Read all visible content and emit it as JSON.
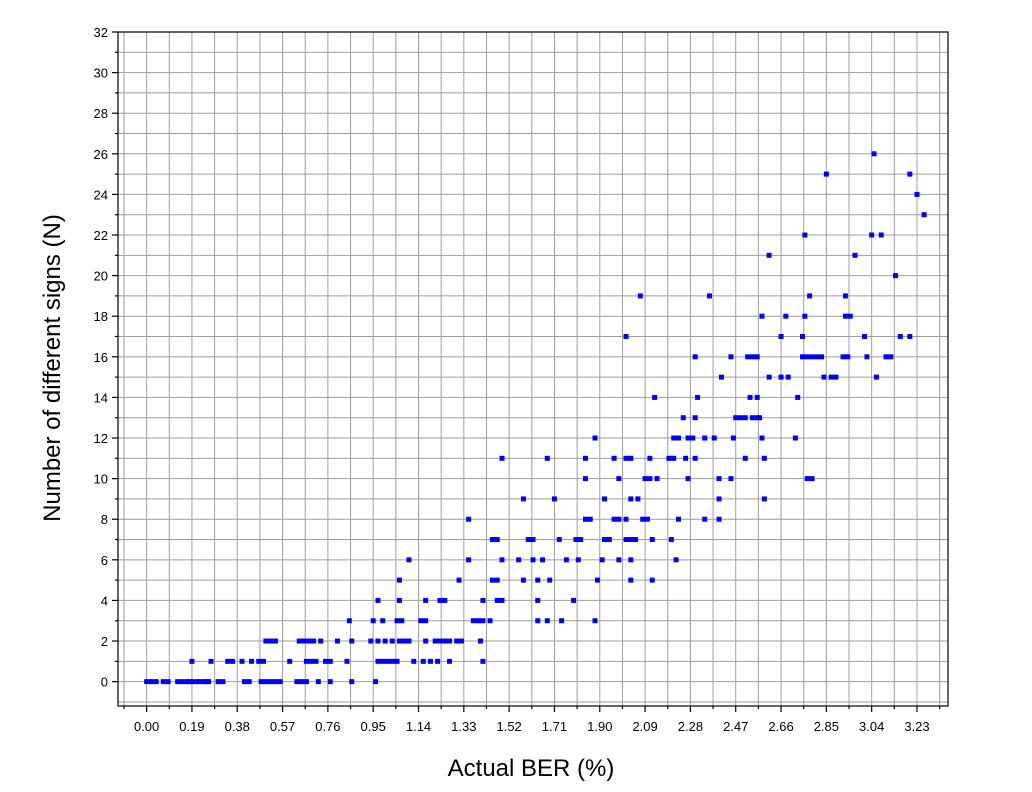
{
  "chart_data": {
    "type": "scatter",
    "title": "",
    "xlabel": "Actual BER (%)",
    "ylabel": "Number of different signs (N)",
    "xlim": [
      -0.12,
      3.36
    ],
    "ylim": [
      -1.2,
      32
    ],
    "x_ticks": [
      "0.00",
      "0.19",
      "0.38",
      "0.57",
      "0.76",
      "0.95",
      "1.14",
      "1.33",
      "1.52",
      "1.71",
      "1.90",
      "2.09",
      "2.28",
      "2.47",
      "2.66",
      "2.85",
      "3.04",
      "3.23"
    ],
    "y_ticks": [
      "0",
      "2",
      "4",
      "6",
      "8",
      "10",
      "12",
      "14",
      "16",
      "18",
      "20",
      "22",
      "24",
      "26",
      "28",
      "30",
      "32"
    ],
    "grid": true,
    "marker_color": "#0000ff",
    "points": [
      [
        0.0,
        0
      ],
      [
        0.02,
        0
      ],
      [
        0.04,
        0
      ],
      [
        0.07,
        0
      ],
      [
        0.09,
        0
      ],
      [
        0.13,
        0
      ],
      [
        0.15,
        0
      ],
      [
        0.17,
        0
      ],
      [
        0.18,
        0
      ],
      [
        0.19,
        0
      ],
      [
        0.21,
        0
      ],
      [
        0.22,
        0
      ],
      [
        0.24,
        0
      ],
      [
        0.25,
        0
      ],
      [
        0.26,
        0
      ],
      [
        0.3,
        0
      ],
      [
        0.32,
        0
      ],
      [
        0.41,
        0
      ],
      [
        0.43,
        0
      ],
      [
        0.48,
        0
      ],
      [
        0.5,
        0
      ],
      [
        0.52,
        0
      ],
      [
        0.54,
        0
      ],
      [
        0.56,
        0
      ],
      [
        0.63,
        0
      ],
      [
        0.65,
        0
      ],
      [
        0.67,
        0
      ],
      [
        0.72,
        0
      ],
      [
        0.77,
        0
      ],
      [
        0.86,
        0
      ],
      [
        0.96,
        0
      ],
      [
        0.19,
        1
      ],
      [
        0.27,
        1
      ],
      [
        0.34,
        1
      ],
      [
        0.36,
        1
      ],
      [
        0.4,
        1
      ],
      [
        0.44,
        1
      ],
      [
        0.47,
        1
      ],
      [
        0.49,
        1
      ],
      [
        0.6,
        1
      ],
      [
        0.67,
        1
      ],
      [
        0.69,
        1
      ],
      [
        0.71,
        1
      ],
      [
        0.75,
        1
      ],
      [
        0.77,
        1
      ],
      [
        0.84,
        1
      ],
      [
        0.97,
        1
      ],
      [
        0.99,
        1
      ],
      [
        1.01,
        1
      ],
      [
        1.03,
        1
      ],
      [
        1.05,
        1
      ],
      [
        1.12,
        1
      ],
      [
        1.16,
        1
      ],
      [
        1.19,
        1
      ],
      [
        1.22,
        1
      ],
      [
        1.27,
        1
      ],
      [
        1.41,
        1
      ],
      [
        0.5,
        2
      ],
      [
        0.52,
        2
      ],
      [
        0.54,
        2
      ],
      [
        0.64,
        2
      ],
      [
        0.66,
        2
      ],
      [
        0.68,
        2
      ],
      [
        0.7,
        2
      ],
      [
        0.73,
        2
      ],
      [
        0.8,
        2
      ],
      [
        0.86,
        2
      ],
      [
        0.94,
        2
      ],
      [
        0.97,
        2
      ],
      [
        1.0,
        2
      ],
      [
        1.03,
        2
      ],
      [
        1.06,
        2
      ],
      [
        1.08,
        2
      ],
      [
        1.1,
        2
      ],
      [
        1.17,
        2
      ],
      [
        1.21,
        2
      ],
      [
        1.23,
        2
      ],
      [
        1.25,
        2
      ],
      [
        1.27,
        2
      ],
      [
        1.3,
        2
      ],
      [
        1.32,
        2
      ],
      [
        1.4,
        2
      ],
      [
        0.85,
        3
      ],
      [
        0.95,
        3
      ],
      [
        0.99,
        3
      ],
      [
        1.05,
        3
      ],
      [
        1.07,
        3
      ],
      [
        1.15,
        3
      ],
      [
        1.17,
        3
      ],
      [
        1.37,
        3
      ],
      [
        1.39,
        3
      ],
      [
        1.41,
        3
      ],
      [
        1.44,
        3
      ],
      [
        1.64,
        3
      ],
      [
        1.68,
        3
      ],
      [
        1.74,
        3
      ],
      [
        1.88,
        3
      ],
      [
        0.97,
        4
      ],
      [
        1.06,
        4
      ],
      [
        1.17,
        4
      ],
      [
        1.23,
        4
      ],
      [
        1.25,
        4
      ],
      [
        1.41,
        4
      ],
      [
        1.47,
        4
      ],
      [
        1.49,
        4
      ],
      [
        1.64,
        4
      ],
      [
        1.79,
        4
      ],
      [
        1.06,
        5
      ],
      [
        1.31,
        5
      ],
      [
        1.45,
        5
      ],
      [
        1.47,
        5
      ],
      [
        1.58,
        5
      ],
      [
        1.64,
        5
      ],
      [
        1.69,
        5
      ],
      [
        1.89,
        5
      ],
      [
        2.03,
        5
      ],
      [
        2.12,
        5
      ],
      [
        1.1,
        6
      ],
      [
        1.35,
        6
      ],
      [
        1.49,
        6
      ],
      [
        1.56,
        6
      ],
      [
        1.62,
        6
      ],
      [
        1.66,
        6
      ],
      [
        1.76,
        6
      ],
      [
        1.81,
        6
      ],
      [
        1.91,
        6
      ],
      [
        1.98,
        6
      ],
      [
        2.03,
        6
      ],
      [
        2.22,
        6
      ],
      [
        1.45,
        7
      ],
      [
        1.47,
        7
      ],
      [
        1.6,
        7
      ],
      [
        1.62,
        7
      ],
      [
        1.73,
        7
      ],
      [
        1.8,
        7
      ],
      [
        1.82,
        7
      ],
      [
        1.92,
        7
      ],
      [
        1.94,
        7
      ],
      [
        2.01,
        7
      ],
      [
        2.03,
        7
      ],
      [
        2.05,
        7
      ],
      [
        2.12,
        7
      ],
      [
        2.2,
        7
      ],
      [
        1.35,
        8
      ],
      [
        1.84,
        8
      ],
      [
        1.86,
        8
      ],
      [
        1.96,
        8
      ],
      [
        1.98,
        8
      ],
      [
        2.01,
        8
      ],
      [
        2.08,
        8
      ],
      [
        2.1,
        8
      ],
      [
        2.23,
        8
      ],
      [
        2.34,
        8
      ],
      [
        2.4,
        8
      ],
      [
        1.58,
        9
      ],
      [
        1.71,
        9
      ],
      [
        1.92,
        9
      ],
      [
        2.03,
        9
      ],
      [
        2.06,
        9
      ],
      [
        2.4,
        9
      ],
      [
        2.59,
        9
      ],
      [
        1.84,
        10
      ],
      [
        1.98,
        10
      ],
      [
        2.09,
        10
      ],
      [
        2.11,
        10
      ],
      [
        2.14,
        10
      ],
      [
        2.27,
        10
      ],
      [
        2.4,
        10
      ],
      [
        2.45,
        10
      ],
      [
        2.77,
        10
      ],
      [
        2.79,
        10
      ],
      [
        1.49,
        11
      ],
      [
        1.68,
        11
      ],
      [
        1.84,
        11
      ],
      [
        1.96,
        11
      ],
      [
        2.01,
        11
      ],
      [
        2.03,
        11
      ],
      [
        2.11,
        11
      ],
      [
        2.19,
        11
      ],
      [
        2.21,
        11
      ],
      [
        2.26,
        11
      ],
      [
        2.3,
        11
      ],
      [
        2.51,
        11
      ],
      [
        2.59,
        11
      ],
      [
        1.88,
        12
      ],
      [
        2.21,
        12
      ],
      [
        2.23,
        12
      ],
      [
        2.27,
        12
      ],
      [
        2.29,
        12
      ],
      [
        2.34,
        12
      ],
      [
        2.38,
        12
      ],
      [
        2.46,
        12
      ],
      [
        2.58,
        12
      ],
      [
        2.72,
        12
      ],
      [
        2.25,
        13
      ],
      [
        2.3,
        13
      ],
      [
        2.47,
        13
      ],
      [
        2.49,
        13
      ],
      [
        2.51,
        13
      ],
      [
        2.54,
        13
      ],
      [
        2.56,
        13
      ],
      [
        2.57,
        13
      ],
      [
        2.13,
        14
      ],
      [
        2.31,
        14
      ],
      [
        2.53,
        14
      ],
      [
        2.56,
        14
      ],
      [
        2.73,
        14
      ],
      [
        2.41,
        15
      ],
      [
        2.61,
        15
      ],
      [
        2.66,
        15
      ],
      [
        2.69,
        15
      ],
      [
        2.84,
        15
      ],
      [
        2.87,
        15
      ],
      [
        2.89,
        15
      ],
      [
        3.06,
        15
      ],
      [
        2.3,
        16
      ],
      [
        2.45,
        16
      ],
      [
        2.52,
        16
      ],
      [
        2.54,
        16
      ],
      [
        2.56,
        16
      ],
      [
        2.75,
        16
      ],
      [
        2.77,
        16
      ],
      [
        2.79,
        16
      ],
      [
        2.81,
        16
      ],
      [
        2.83,
        16
      ],
      [
        2.92,
        16
      ],
      [
        2.94,
        16
      ],
      [
        3.02,
        16
      ],
      [
        3.1,
        16
      ],
      [
        3.12,
        16
      ],
      [
        2.01,
        17
      ],
      [
        2.66,
        17
      ],
      [
        2.75,
        17
      ],
      [
        3.01,
        17
      ],
      [
        3.16,
        17
      ],
      [
        3.2,
        17
      ],
      [
        2.58,
        18
      ],
      [
        2.68,
        18
      ],
      [
        2.76,
        18
      ],
      [
        2.93,
        18
      ],
      [
        2.95,
        18
      ],
      [
        2.07,
        19
      ],
      [
        2.36,
        19
      ],
      [
        2.78,
        19
      ],
      [
        2.93,
        19
      ],
      [
        3.14,
        20
      ],
      [
        2.61,
        21
      ],
      [
        2.97,
        21
      ],
      [
        2.76,
        22
      ],
      [
        3.04,
        22
      ],
      [
        3.08,
        22
      ],
      [
        3.26,
        23
      ],
      [
        3.23,
        24
      ],
      [
        2.85,
        25
      ],
      [
        3.2,
        25
      ],
      [
        3.05,
        26
      ]
    ]
  }
}
